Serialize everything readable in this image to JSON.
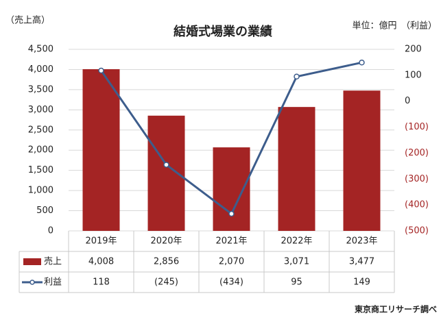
{
  "chart_data": {
    "type": "bar-line",
    "title": "結婚式場業の業績",
    "y_label": "（売上高）",
    "y2_label": "単位：億円　（利益）",
    "source": "東京商工リサーチ調べ",
    "categories": [
      "2019年",
      "2020年",
      "2021年",
      "2022年",
      "2023年"
    ],
    "series": [
      {
        "name": "売上",
        "type": "bar",
        "color": "#a42424",
        "values": [
          4008,
          2856,
          2070,
          3071,
          3477
        ],
        "value_labels": [
          "4,008",
          "2,856",
          "2,070",
          "3,071",
          "3,477"
        ]
      },
      {
        "name": "利益",
        "type": "line",
        "axis": "y2",
        "color": "#3d5d8c",
        "values": [
          118,
          -245,
          -434,
          95,
          149
        ],
        "value_labels": [
          "118",
          "(245)",
          "(434)",
          "95",
          "149"
        ]
      }
    ],
    "ylim": [
      0,
      4500
    ],
    "yticks": [
      0,
      500,
      {
        "value": 1000,
        "label": "1,000"
      },
      {
        "value": 1500,
        "label": "1,500"
      },
      {
        "value": 2000,
        "label": "2,000"
      },
      {
        "value": 2500,
        "label": "2,500"
      },
      {
        "value": 3000,
        "label": "3,000"
      },
      {
        "value": 3500,
        "label": "3,500"
      },
      {
        "value": 4000,
        "label": "4,000"
      },
      {
        "value": 4500,
        "label": "4,500"
      }
    ],
    "y2lim": [
      -500,
      200
    ],
    "y2ticks": [
      {
        "value": -500,
        "label": "(500)"
      },
      {
        "value": -400,
        "label": "(400)"
      },
      {
        "value": -300,
        "label": "(300)"
      },
      {
        "value": -200,
        "label": "(200)"
      },
      {
        "value": -100,
        "label": "(100)"
      },
      0,
      100,
      200
    ],
    "y2tick_negative_color": "#a42424",
    "grid": true,
    "data_table": true
  }
}
